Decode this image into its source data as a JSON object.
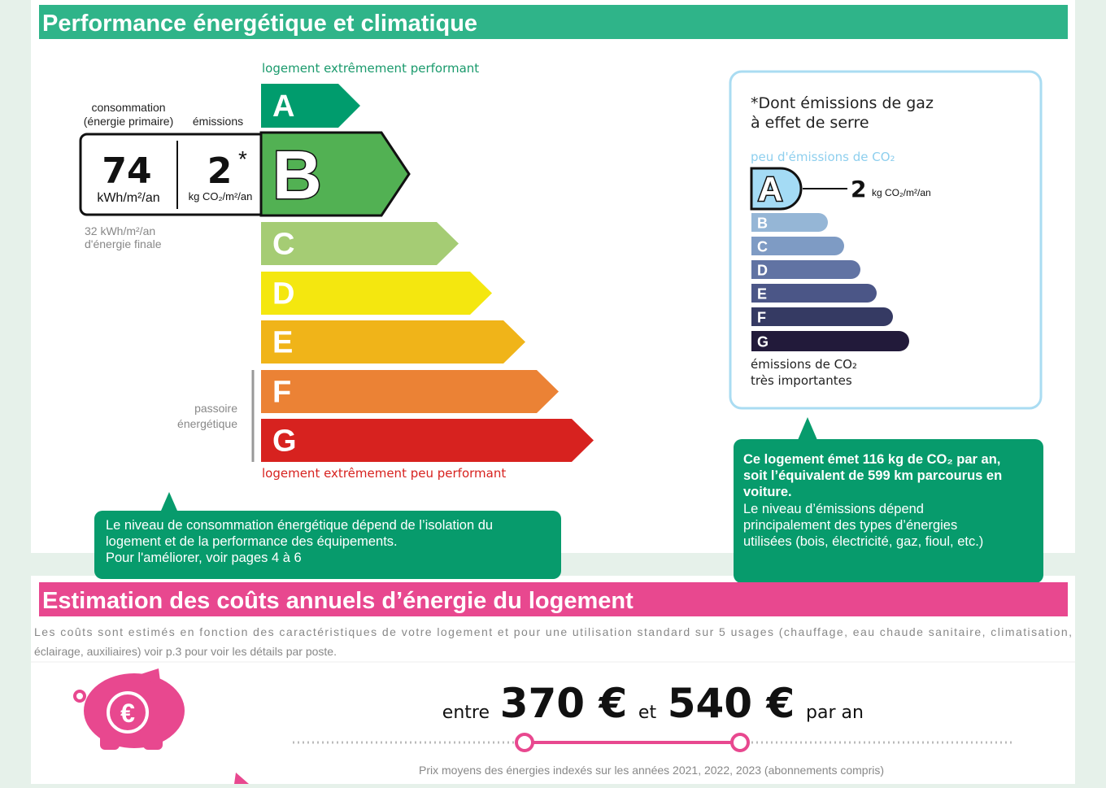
{
  "energy": {
    "title": "Performance énergétique et climatique",
    "top_label": "logement extrêmement performant",
    "bottom_label": "logement extrêmement peu performant",
    "consumption_label": [
      "consommation",
      "(énergie primaire)"
    ],
    "emissions_label": "émissions",
    "consumption_value": "74",
    "consumption_unit": "kWh/m²/an",
    "emission_value": "2",
    "emission_star": "*",
    "emission_unit": "kg CO₂/m²/an",
    "final_energy": [
      "32 kWh/m²/an",
      "d'énergie finale"
    ],
    "passoire": [
      "passoire",
      "énergétique"
    ],
    "classes": [
      "A",
      "B",
      "C",
      "D",
      "E",
      "F",
      "G"
    ],
    "note": [
      "Le niveau de consommation énergétique dépend de l’isolation du",
      "logement et de la performance des équipements.",
      "Pour l'améliorer, voir pages 4 à 6"
    ]
  },
  "climate": {
    "heading": [
      "*Dont émissions de gaz",
      "à effet de serre"
    ],
    "top_label": "peu d'émissions de CO₂",
    "bottom_label": [
      "émissions de CO₂",
      "très importantes"
    ],
    "value": "2",
    "unit": "kg CO₂/m²/an",
    "classes": [
      "A",
      "B",
      "C",
      "D",
      "E",
      "F",
      "G"
    ],
    "note_bold": [
      "Ce logement émet 116 kg de CO₂ par an,",
      "soit l’équivalent de 599 km parcourus en",
      "voiture."
    ],
    "note": [
      "Le niveau d’émissions dépend",
      "principalement des types d’énergies",
      "utilisées (bois, électricité, gaz, fioul, etc.)"
    ]
  },
  "costs": {
    "title": "Estimation des coûts annuels d’énergie du logement",
    "intro": [
      "Les coûts sont estimés en fonction des caractéristiques de votre logement et pour une utilisation standard sur 5 usages (chauffage, eau chaude sanitaire, climatisation,",
      "éclairage, auxiliaires) voir p.3 pour voir les détails par poste."
    ],
    "between": "entre",
    "low": "370 €",
    "and": "et",
    "high": "540 €",
    "per_year": "par an",
    "footnote": "Prix moyens des énergies indexés sur les années 2021, 2022, 2023 (abonnements compris)"
  }
}
